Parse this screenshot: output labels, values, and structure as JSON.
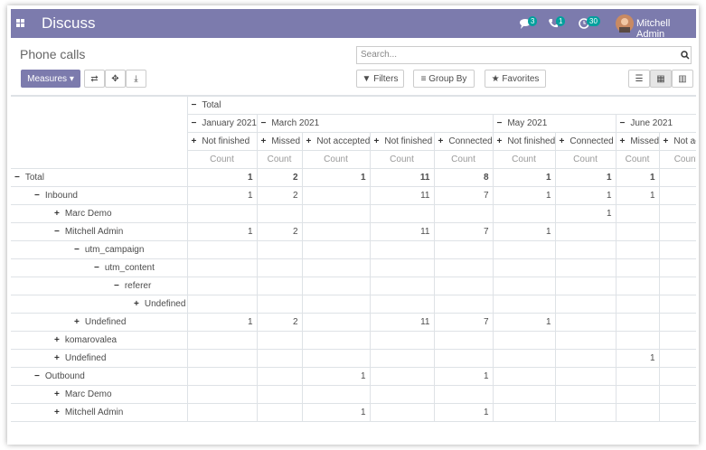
{
  "navbar": {
    "app": "Discuss",
    "badges": [
      3,
      1,
      30
    ],
    "user": "Mitchell Admin"
  },
  "control_panel": {
    "breadcrumb": "Phone calls",
    "search_placeholder": "Search...",
    "measures": "Measures",
    "filters": "Filters",
    "group_by": "Group By",
    "favorites": "Favorites"
  },
  "pivot": {
    "header": {
      "total": "Total",
      "measure": "Count",
      "groups": [
        {
          "label": "January 2021",
          "statuses": [
            "Not finished"
          ]
        },
        {
          "label": "March 2021",
          "statuses": [
            "Missed",
            "Not accepted",
            "Not finished",
            "Connected"
          ]
        },
        {
          "label": "May 2021",
          "statuses": [
            "Not finished",
            "Connected"
          ]
        },
        {
          "label": "June 2021",
          "statuses": [
            "Missed",
            "Not accepted"
          ]
        }
      ]
    },
    "rows": [
      {
        "label": "Total",
        "cells": [
          1,
          2,
          1,
          11,
          8,
          1,
          1,
          1,
          null
        ]
      },
      {
        "label": "Inbound",
        "cells": [
          1,
          2,
          null,
          11,
          7,
          1,
          1,
          1,
          null
        ]
      },
      {
        "label": "Marc Demo",
        "cells": [
          null,
          null,
          null,
          null,
          null,
          null,
          1,
          null,
          null
        ]
      },
      {
        "label": "Mitchell Admin",
        "cells": [
          1,
          2,
          null,
          11,
          7,
          1,
          null,
          null,
          null
        ]
      },
      {
        "label": "utm_campaign",
        "cells": [
          null,
          null,
          null,
          null,
          null,
          null,
          null,
          null,
          null
        ]
      },
      {
        "label": "utm_content",
        "cells": [
          null,
          null,
          null,
          null,
          null,
          null,
          null,
          null,
          null
        ]
      },
      {
        "label": "referer",
        "cells": [
          null,
          null,
          null,
          null,
          null,
          null,
          null,
          null,
          null
        ]
      },
      {
        "label": "Undefined",
        "cells": [
          null,
          null,
          null,
          null,
          null,
          null,
          null,
          null,
          null
        ]
      },
      {
        "label": "Undefined",
        "cells": [
          1,
          2,
          null,
          11,
          7,
          1,
          null,
          null,
          null
        ]
      },
      {
        "label": "komarovalea",
        "cells": [
          null,
          null,
          null,
          null,
          null,
          null,
          null,
          null,
          null
        ]
      },
      {
        "label": "Undefined",
        "cells": [
          null,
          null,
          null,
          null,
          null,
          null,
          null,
          1,
          null
        ]
      },
      {
        "label": "Outbound",
        "cells": [
          null,
          null,
          1,
          null,
          1,
          null,
          null,
          null,
          null
        ]
      },
      {
        "label": "Marc Demo",
        "cells": [
          null,
          null,
          null,
          null,
          null,
          null,
          null,
          null,
          null
        ]
      },
      {
        "label": "Mitchell Admin",
        "cells": [
          null,
          null,
          1,
          null,
          1,
          null,
          null,
          null,
          null
        ]
      }
    ]
  }
}
